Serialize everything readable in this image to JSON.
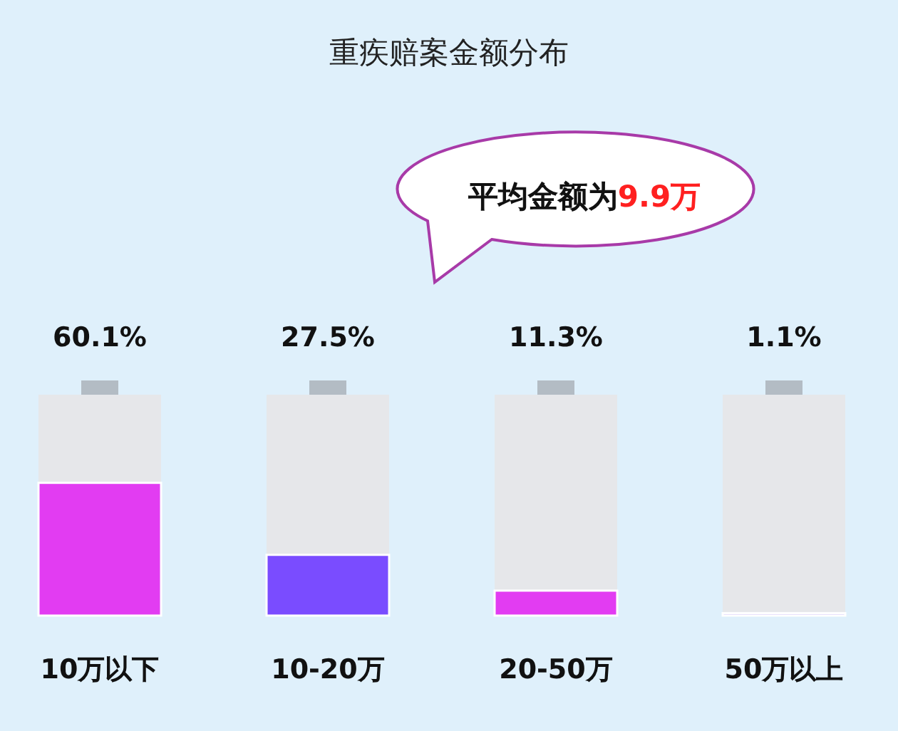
{
  "chart_data": {
    "type": "bar",
    "title": "重疾赔案金额分布",
    "categories": [
      "10万以下",
      "10-20万",
      "20-50万",
      "50万以上"
    ],
    "values": [
      60.1,
      27.5,
      11.3,
      1.1
    ],
    "value_labels": [
      "60.1%",
      "27.5%",
      "11.3%",
      "1.1%"
    ],
    "colors": [
      "#e23cf2",
      "#7a4cff",
      "#e23cf2",
      "#c9b9f7"
    ],
    "ylim": [
      0,
      100
    ],
    "annotations": [
      "平均金额为**9.9万**"
    ]
  }
}
